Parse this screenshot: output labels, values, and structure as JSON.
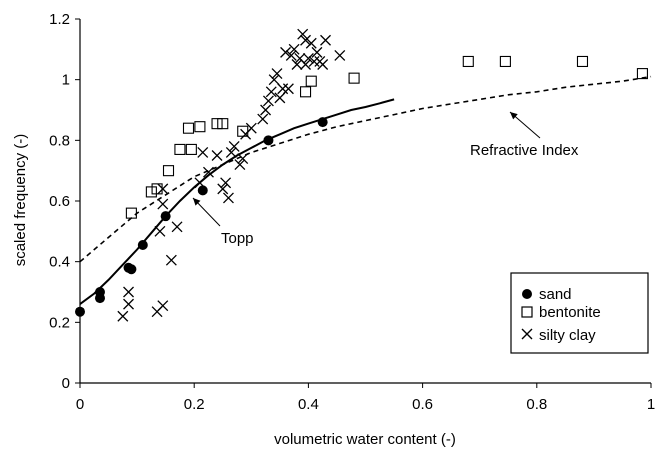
{
  "chart_data": {
    "type": "scatter",
    "xlabel": "volumetric water content (-)",
    "ylabel": "scaled frequency (-)",
    "xlim": [
      0,
      1
    ],
    "ylim": [
      0,
      1.2
    ],
    "xticks": [
      "0",
      "0.2",
      "0.4",
      "0.6",
      "0.8",
      "1"
    ],
    "yticks": [
      "0",
      "0.2",
      "0.4",
      "0.6",
      "0.8",
      "1",
      "1.2"
    ],
    "grid": false,
    "legend_position": "bottom-right",
    "series": [
      {
        "name": "sand",
        "marker": "filled-circle",
        "points": [
          [
            0.0,
            0.235
          ],
          [
            0.035,
            0.28
          ],
          [
            0.035,
            0.3
          ],
          [
            0.085,
            0.38
          ],
          [
            0.09,
            0.375
          ],
          [
            0.11,
            0.455
          ],
          [
            0.15,
            0.55
          ],
          [
            0.215,
            0.635
          ],
          [
            0.33,
            0.8
          ],
          [
            0.425,
            0.86
          ]
        ]
      },
      {
        "name": "bentonite",
        "marker": "open-square",
        "points": [
          [
            0.09,
            0.56
          ],
          [
            0.125,
            0.63
          ],
          [
            0.135,
            0.64
          ],
          [
            0.155,
            0.7
          ],
          [
            0.175,
            0.77
          ],
          [
            0.19,
            0.84
          ],
          [
            0.195,
            0.77
          ],
          [
            0.21,
            0.845
          ],
          [
            0.24,
            0.855
          ],
          [
            0.25,
            0.855
          ],
          [
            0.285,
            0.83
          ],
          [
            0.395,
            0.96
          ],
          [
            0.405,
            0.995
          ],
          [
            0.48,
            1.005
          ],
          [
            0.68,
            1.06
          ],
          [
            0.745,
            1.06
          ],
          [
            0.88,
            1.06
          ],
          [
            0.985,
            1.02
          ]
        ]
      },
      {
        "name": "silty clay",
        "marker": "cross",
        "points": [
          [
            0.075,
            0.22
          ],
          [
            0.085,
            0.26
          ],
          [
            0.085,
            0.3
          ],
          [
            0.135,
            0.235
          ],
          [
            0.145,
            0.255
          ],
          [
            0.14,
            0.5
          ],
          [
            0.145,
            0.59
          ],
          [
            0.145,
            0.64
          ],
          [
            0.16,
            0.405
          ],
          [
            0.17,
            0.515
          ],
          [
            0.21,
            0.66
          ],
          [
            0.215,
            0.76
          ],
          [
            0.225,
            0.695
          ],
          [
            0.24,
            0.75
          ],
          [
            0.25,
            0.64
          ],
          [
            0.255,
            0.66
          ],
          [
            0.26,
            0.61
          ],
          [
            0.265,
            0.76
          ],
          [
            0.27,
            0.78
          ],
          [
            0.28,
            0.72
          ],
          [
            0.285,
            0.74
          ],
          [
            0.29,
            0.82
          ],
          [
            0.3,
            0.84
          ],
          [
            0.32,
            0.87
          ],
          [
            0.325,
            0.9
          ],
          [
            0.33,
            0.93
          ],
          [
            0.335,
            0.96
          ],
          [
            0.34,
            1.0
          ],
          [
            0.345,
            1.02
          ],
          [
            0.35,
            0.94
          ],
          [
            0.355,
            0.97
          ],
          [
            0.36,
            1.09
          ],
          [
            0.365,
            0.97
          ],
          [
            0.37,
            1.08
          ],
          [
            0.375,
            1.1
          ],
          [
            0.38,
            1.05
          ],
          [
            0.385,
            1.07
          ],
          [
            0.39,
            1.15
          ],
          [
            0.395,
            1.13
          ],
          [
            0.4,
            1.07
          ],
          [
            0.405,
            1.12
          ],
          [
            0.41,
            1.06
          ],
          [
            0.415,
            1.09
          ],
          [
            0.42,
            1.06
          ],
          [
            0.425,
            1.05
          ],
          [
            0.43,
            1.13
          ],
          [
            0.455,
            1.08
          ],
          [
            0.395,
            1.05
          ]
        ]
      }
    ],
    "curves": [
      {
        "label": "Topp",
        "style": "solid",
        "x": [
          0.0,
          0.025,
          0.05,
          0.075,
          0.1,
          0.125,
          0.15,
          0.175,
          0.2,
          0.225,
          0.25,
          0.275,
          0.3,
          0.325,
          0.35,
          0.375,
          0.4,
          0.425,
          0.45,
          0.475,
          0.5,
          0.525,
          0.55
        ],
        "y": [
          0.26,
          0.295,
          0.34,
          0.39,
          0.44,
          0.495,
          0.55,
          0.6,
          0.645,
          0.685,
          0.72,
          0.75,
          0.775,
          0.8,
          0.82,
          0.84,
          0.855,
          0.87,
          0.885,
          0.9,
          0.91,
          0.922,
          0.935
        ]
      },
      {
        "label": "Refractive Index",
        "style": "dashed",
        "x": [
          0.0,
          0.05,
          0.1,
          0.15,
          0.2,
          0.25,
          0.3,
          0.35,
          0.4,
          0.45,
          0.5,
          0.55,
          0.6,
          0.65,
          0.7,
          0.75,
          0.8,
          0.85,
          0.9,
          0.95,
          1.0
        ],
        "y": [
          0.4,
          0.48,
          0.56,
          0.62,
          0.68,
          0.72,
          0.76,
          0.79,
          0.82,
          0.845,
          0.865,
          0.885,
          0.905,
          0.92,
          0.935,
          0.95,
          0.96,
          0.975,
          0.985,
          0.995,
          1.01
        ]
      }
    ]
  },
  "colors": {
    "ink": "#000000",
    "background": "#ffffff"
  }
}
